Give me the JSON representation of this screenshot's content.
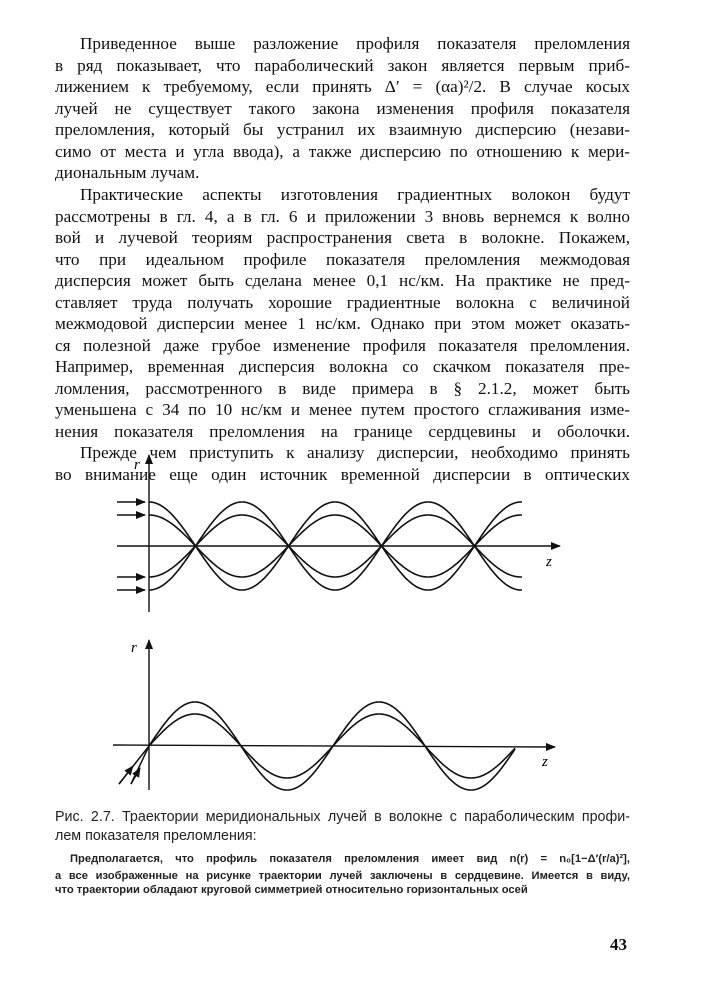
{
  "body_text": {
    "lines": [
      "Приведенное выше разложение профиля показателя преломления",
      "в ряд показывает, что параболический закон является первым приб-",
      "лижением к требуемому, если принять Δ′ = (αa)²/2. В случае косых",
      "лучей не существует такого закона изменения профиля показателя",
      "преломления, который бы устранил их взаимную дисперсию (незави-",
      "симо от места и угла ввода), а также дисперсию по отношению к мери-",
      "диональным лучам.",
      "Практические аспекты изготовления градиентных волокон будут",
      "рассмотрены в гл. 4, а в гл. 6 и приложении 3 вновь вернемся к волно",
      "вой и лучевой теориям распространения света в волокне. Покажем,",
      "что при идеальном профиле показателя преломления межмодовая",
      "дисперсия может быть сделана менее 0,1 нс/км. На практике не пред-",
      "ставляет труда получать хорошие градиентные волокна с величиной",
      "межмодовой дисперсии менее 1 нс/км. Однако при этом может оказать-",
      "ся полезной даже грубое изменение профиля показателя преломления.",
      "Например, временная дисперсия волокна со скачком показателя пре-",
      "ломления, рассмотренного в виде примера в § 2.1.2, может быть",
      "уменьшена с 34 по 10 нс/км и менее путем простого сглаживания изме-",
      "нения показателя преломления на границе сердцевины и оболочки.",
      "Прежде чем приступить к анализу дисперсии, необходимо принять",
      "во внимание еще один источник временной дисперсии в оптических"
    ]
  },
  "figure": {
    "top": {
      "r_label": "r",
      "z_label": "z"
    },
    "bottom": {
      "r_label": "r",
      "z_label": "z"
    }
  },
  "caption": {
    "lines": [
      "Рис. 2.7. Траектории меридиональных лучей в волокне с параболическим профи-",
      "лем показателя преломления:"
    ]
  },
  "note": {
    "lines": [
      "Предполагается, что профиль показателя преломления имеет вид n(r) = n₀[1−Δ′(r/a)²],",
      "а все изображенные на рисунке траектории лучей заключены в сердцевине. Имеется в виду,",
      "что траектории обладают круговой симметрией относительно горизонтальных осей"
    ]
  },
  "page_number": "43"
}
